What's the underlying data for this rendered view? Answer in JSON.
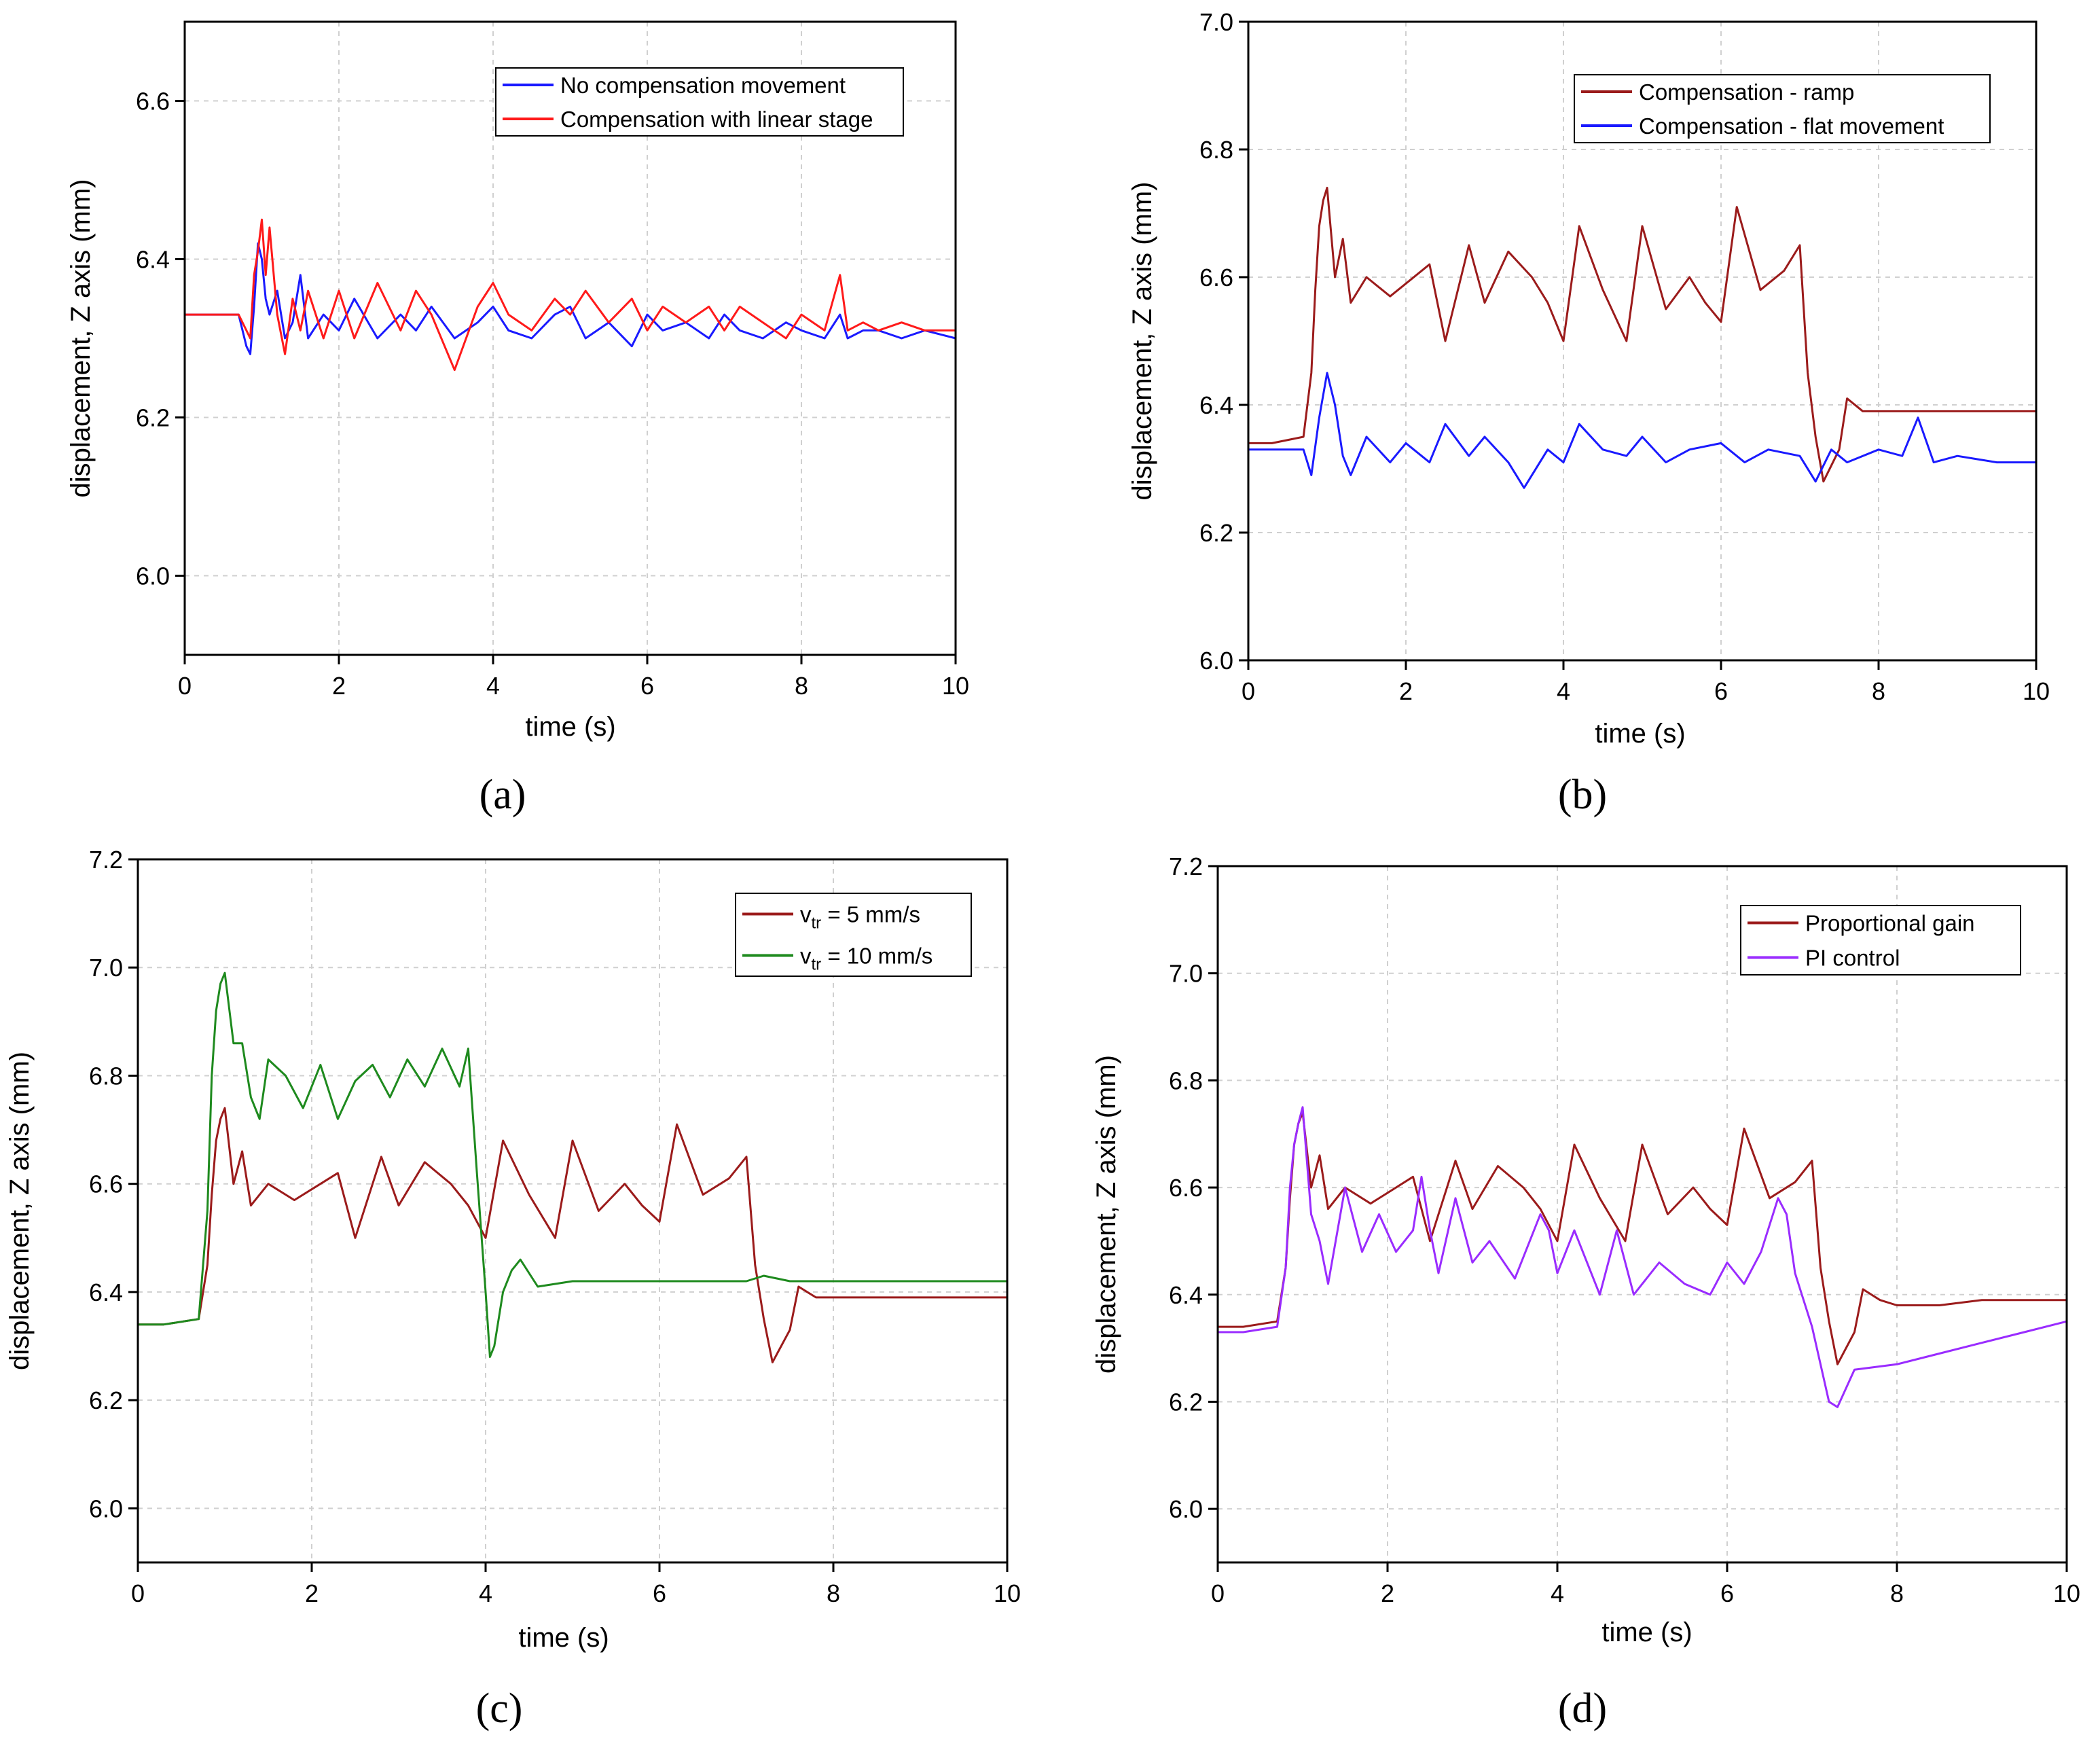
{
  "colors": {
    "blue": "#1a1aff",
    "red": "#ff1a1a",
    "darkred": "#9b1b1b",
    "green": "#1e8a1e",
    "purple": "#9a2cff"
  },
  "chart_data": [
    {
      "type": "line",
      "panel_label": "(a)",
      "xlabel": "time (s)",
      "ylabel": "displacement, Z axis (mm)",
      "xlim": [
        0,
        10
      ],
      "ylim": [
        5.9,
        6.7
      ],
      "xticks": [
        0,
        2,
        4,
        6,
        8,
        10
      ],
      "yticks": [
        6.0,
        6.2,
        6.4,
        6.6
      ],
      "xtick_labels": [
        "0",
        "2",
        "4",
        "6",
        "8",
        "10"
      ],
      "ytick_labels": [
        "6.0",
        "6.2",
        "6.4",
        "6.6"
      ],
      "grid": true,
      "legend_position": "top-right",
      "series": [
        {
          "name": "No compensation movement",
          "color_key": "blue",
          "x": [
            0,
            0.3,
            0.7,
            0.8,
            0.85,
            0.9,
            0.95,
            1.0,
            1.05,
            1.1,
            1.2,
            1.3,
            1.4,
            1.5,
            1.6,
            1.8,
            2.0,
            2.2,
            2.5,
            2.8,
            3.0,
            3.2,
            3.5,
            3.8,
            4.0,
            4.2,
            4.5,
            4.8,
            5.0,
            5.2,
            5.5,
            5.8,
            6.0,
            6.2,
            6.5,
            6.8,
            7.0,
            7.2,
            7.5,
            7.8,
            8.0,
            8.3,
            8.5,
            8.6,
            8.8,
            9.0,
            9.3,
            9.6,
            10.0
          ],
          "y": [
            6.33,
            6.33,
            6.33,
            6.29,
            6.28,
            6.34,
            6.42,
            6.4,
            6.35,
            6.33,
            6.36,
            6.3,
            6.32,
            6.38,
            6.3,
            6.33,
            6.31,
            6.35,
            6.3,
            6.33,
            6.31,
            6.34,
            6.3,
            6.32,
            6.34,
            6.31,
            6.3,
            6.33,
            6.34,
            6.3,
            6.32,
            6.29,
            6.33,
            6.31,
            6.32,
            6.3,
            6.33,
            6.31,
            6.3,
            6.32,
            6.31,
            6.3,
            6.33,
            6.3,
            6.31,
            6.31,
            6.3,
            6.31,
            6.3
          ]
        },
        {
          "name": "Compensation with linear stage",
          "color_key": "red",
          "x": [
            0,
            0.3,
            0.7,
            0.8,
            0.85,
            0.9,
            0.95,
            1.0,
            1.05,
            1.1,
            1.2,
            1.3,
            1.4,
            1.5,
            1.6,
            1.8,
            2.0,
            2.2,
            2.5,
            2.8,
            3.0,
            3.2,
            3.5,
            3.8,
            4.0,
            4.2,
            4.5,
            4.8,
            5.0,
            5.2,
            5.5,
            5.8,
            6.0,
            6.2,
            6.5,
            6.8,
            7.0,
            7.2,
            7.5,
            7.8,
            8.0,
            8.3,
            8.5,
            8.6,
            8.8,
            9.0,
            9.3,
            9.6,
            10.0
          ],
          "y": [
            6.33,
            6.33,
            6.33,
            6.31,
            6.3,
            6.38,
            6.41,
            6.45,
            6.38,
            6.44,
            6.33,
            6.28,
            6.35,
            6.31,
            6.36,
            6.3,
            6.36,
            6.3,
            6.37,
            6.31,
            6.36,
            6.33,
            6.26,
            6.34,
            6.37,
            6.33,
            6.31,
            6.35,
            6.33,
            6.36,
            6.32,
            6.35,
            6.31,
            6.34,
            6.32,
            6.34,
            6.31,
            6.34,
            6.32,
            6.3,
            6.33,
            6.31,
            6.38,
            6.31,
            6.32,
            6.31,
            6.32,
            6.31,
            6.31
          ]
        }
      ]
    },
    {
      "type": "line",
      "panel_label": "(b)",
      "xlabel": "time (s)",
      "ylabel": "displacement, Z axis (mm)",
      "xlim": [
        0,
        10
      ],
      "ylim": [
        6.0,
        7.0
      ],
      "xticks": [
        0,
        2,
        4,
        6,
        8,
        10
      ],
      "yticks": [
        6.0,
        6.2,
        6.4,
        6.6,
        6.8,
        7.0
      ],
      "xtick_labels": [
        "0",
        "2",
        "4",
        "6",
        "8",
        "10"
      ],
      "ytick_labels": [
        "6.0",
        "6.2",
        "6.4",
        "6.6",
        "6.8",
        "7.0"
      ],
      "grid": true,
      "legend_position": "top-right",
      "series": [
        {
          "name": "Compensation - ramp",
          "color_key": "darkred",
          "x": [
            0,
            0.3,
            0.7,
            0.8,
            0.85,
            0.9,
            0.95,
            1.0,
            1.1,
            1.2,
            1.3,
            1.5,
            1.8,
            2.0,
            2.3,
            2.5,
            2.8,
            3.0,
            3.3,
            3.6,
            3.8,
            4.0,
            4.2,
            4.5,
            4.8,
            5.0,
            5.3,
            5.6,
            5.8,
            6.0,
            6.2,
            6.5,
            6.8,
            7.0,
            7.1,
            7.2,
            7.3,
            7.5,
            7.6,
            7.8,
            8.0,
            8.5,
            9.0,
            9.5,
            10.0
          ],
          "y": [
            6.34,
            6.34,
            6.35,
            6.45,
            6.58,
            6.68,
            6.72,
            6.74,
            6.6,
            6.66,
            6.56,
            6.6,
            6.57,
            6.59,
            6.62,
            6.5,
            6.65,
            6.56,
            6.64,
            6.6,
            6.56,
            6.5,
            6.68,
            6.58,
            6.5,
            6.68,
            6.55,
            6.6,
            6.56,
            6.53,
            6.71,
            6.58,
            6.61,
            6.65,
            6.45,
            6.35,
            6.28,
            6.33,
            6.41,
            6.39,
            6.39,
            6.39,
            6.39,
            6.39,
            6.39
          ]
        },
        {
          "name": "Compensation - flat movement",
          "color_key": "blue",
          "x": [
            0,
            0.3,
            0.7,
            0.8,
            0.9,
            1.0,
            1.1,
            1.2,
            1.3,
            1.5,
            1.8,
            2.0,
            2.3,
            2.5,
            2.8,
            3.0,
            3.3,
            3.5,
            3.8,
            4.0,
            4.2,
            4.5,
            4.8,
            5.0,
            5.3,
            5.6,
            6.0,
            6.3,
            6.6,
            7.0,
            7.2,
            7.4,
            7.6,
            8.0,
            8.3,
            8.5,
            8.7,
            9.0,
            9.5,
            10.0
          ],
          "y": [
            6.33,
            6.33,
            6.33,
            6.29,
            6.38,
            6.45,
            6.4,
            6.32,
            6.29,
            6.35,
            6.31,
            6.34,
            6.31,
            6.37,
            6.32,
            6.35,
            6.31,
            6.27,
            6.33,
            6.31,
            6.37,
            6.33,
            6.32,
            6.35,
            6.31,
            6.33,
            6.34,
            6.31,
            6.33,
            6.32,
            6.28,
            6.33,
            6.31,
            6.33,
            6.32,
            6.38,
            6.31,
            6.32,
            6.31,
            6.31
          ]
        }
      ]
    },
    {
      "type": "line",
      "panel_label": "(c)",
      "xlabel": "time (s)",
      "ylabel": "displacement, Z axis (mm)",
      "xlim": [
        0,
        10
      ],
      "ylim": [
        5.9,
        7.2
      ],
      "xticks": [
        0,
        2,
        4,
        6,
        8,
        10
      ],
      "yticks": [
        6.0,
        6.2,
        6.4,
        6.6,
        6.8,
        7.0,
        7.2
      ],
      "xtick_labels": [
        "0",
        "2",
        "4",
        "6",
        "8",
        "10"
      ],
      "ytick_labels": [
        "6.0",
        "6.2",
        "6.4",
        "6.6",
        "6.8",
        "7.0",
        "7.2"
      ],
      "grid": true,
      "legend_position": "top-right",
      "legend_labels": [
        {
          "base": "v",
          "sub": "tr",
          "rest": " = 5 mm/s"
        },
        {
          "base": "v",
          "sub": "tr",
          "rest": " = 10 mm/s"
        }
      ],
      "series": [
        {
          "name": "v_tr = 5 mm/s",
          "color_key": "darkred",
          "x": [
            0,
            0.3,
            0.7,
            0.8,
            0.85,
            0.9,
            0.95,
            1.0,
            1.1,
            1.2,
            1.3,
            1.5,
            1.8,
            2.0,
            2.3,
            2.5,
            2.8,
            3.0,
            3.3,
            3.6,
            3.8,
            4.0,
            4.2,
            4.5,
            4.8,
            5.0,
            5.3,
            5.6,
            5.8,
            6.0,
            6.2,
            6.5,
            6.8,
            7.0,
            7.1,
            7.2,
            7.3,
            7.5,
            7.6,
            7.8,
            8.0,
            8.5,
            9.0,
            9.5,
            10.0
          ],
          "y": [
            6.34,
            6.34,
            6.35,
            6.45,
            6.58,
            6.68,
            6.72,
            6.74,
            6.6,
            6.66,
            6.56,
            6.6,
            6.57,
            6.59,
            6.62,
            6.5,
            6.65,
            6.56,
            6.64,
            6.6,
            6.56,
            6.5,
            6.68,
            6.58,
            6.5,
            6.68,
            6.55,
            6.6,
            6.56,
            6.53,
            6.71,
            6.58,
            6.61,
            6.65,
            6.45,
            6.35,
            6.27,
            6.33,
            6.41,
            6.39,
            6.39,
            6.39,
            6.39,
            6.39,
            6.39
          ]
        },
        {
          "name": "v_tr = 10 mm/s",
          "color_key": "green",
          "x": [
            0,
            0.3,
            0.7,
            0.8,
            0.85,
            0.9,
            0.95,
            1.0,
            1.1,
            1.2,
            1.3,
            1.4,
            1.5,
            1.7,
            1.9,
            2.1,
            2.3,
            2.5,
            2.7,
            2.9,
            3.1,
            3.3,
            3.5,
            3.7,
            3.8,
            3.9,
            4.0,
            4.05,
            4.1,
            4.2,
            4.3,
            4.4,
            4.6,
            5.0,
            5.5,
            6.0,
            6.5,
            7.0,
            7.2,
            7.5,
            8.0,
            8.5,
            9.0,
            9.5,
            10.0
          ],
          "y": [
            6.34,
            6.34,
            6.35,
            6.55,
            6.8,
            6.92,
            6.97,
            6.99,
            6.86,
            6.86,
            6.76,
            6.72,
            6.83,
            6.8,
            6.74,
            6.82,
            6.72,
            6.79,
            6.82,
            6.76,
            6.83,
            6.78,
            6.85,
            6.78,
            6.85,
            6.62,
            6.4,
            6.28,
            6.3,
            6.4,
            6.44,
            6.46,
            6.41,
            6.42,
            6.42,
            6.42,
            6.42,
            6.42,
            6.43,
            6.42,
            6.42,
            6.42,
            6.42,
            6.42,
            6.42
          ]
        }
      ]
    },
    {
      "type": "line",
      "panel_label": "(d)",
      "xlabel": "time (s)",
      "ylabel": "displacement, Z axis (mm)",
      "xlim": [
        0,
        10
      ],
      "ylim": [
        5.9,
        7.2
      ],
      "xticks": [
        0,
        2,
        4,
        6,
        8,
        10
      ],
      "yticks": [
        6.0,
        6.2,
        6.4,
        6.6,
        6.8,
        7.0,
        7.2
      ],
      "xtick_labels": [
        "0",
        "2",
        "4",
        "6",
        "8",
        "10"
      ],
      "ytick_labels": [
        "6.0",
        "6.2",
        "6.4",
        "6.6",
        "6.8",
        "7.0",
        "7.2"
      ],
      "grid": true,
      "legend_position": "top-right",
      "series": [
        {
          "name": "Proportional gain",
          "color_key": "darkred",
          "x": [
            0,
            0.3,
            0.7,
            0.8,
            0.85,
            0.9,
            0.95,
            1.0,
            1.1,
            1.2,
            1.3,
            1.5,
            1.8,
            2.0,
            2.3,
            2.5,
            2.8,
            3.0,
            3.3,
            3.6,
            3.8,
            4.0,
            4.2,
            4.5,
            4.8,
            5.0,
            5.3,
            5.6,
            5.8,
            6.0,
            6.2,
            6.5,
            6.8,
            7.0,
            7.1,
            7.2,
            7.3,
            7.5,
            7.6,
            7.8,
            8.0,
            8.5,
            9.0,
            9.5,
            10.0
          ],
          "y": [
            6.34,
            6.34,
            6.35,
            6.45,
            6.58,
            6.68,
            6.72,
            6.74,
            6.6,
            6.66,
            6.56,
            6.6,
            6.57,
            6.59,
            6.62,
            6.5,
            6.65,
            6.56,
            6.64,
            6.6,
            6.56,
            6.5,
            6.68,
            6.58,
            6.5,
            6.68,
            6.55,
            6.6,
            6.56,
            6.53,
            6.71,
            6.58,
            6.61,
            6.65,
            6.45,
            6.35,
            6.27,
            6.33,
            6.41,
            6.39,
            6.38,
            6.38,
            6.39,
            6.39,
            6.39
          ]
        },
        {
          "name": "PI control",
          "color_key": "purple",
          "x": [
            0,
            0.3,
            0.7,
            0.8,
            0.85,
            0.9,
            0.95,
            1.0,
            1.1,
            1.2,
            1.3,
            1.5,
            1.7,
            1.9,
            2.1,
            2.3,
            2.4,
            2.5,
            2.6,
            2.8,
            3.0,
            3.2,
            3.5,
            3.8,
            3.9,
            4.0,
            4.2,
            4.5,
            4.7,
            4.9,
            5.2,
            5.5,
            5.8,
            6.0,
            6.2,
            6.4,
            6.6,
            6.7,
            6.8,
            7.0,
            7.1,
            7.2,
            7.3,
            7.5,
            8.0,
            8.5,
            9.0,
            9.5,
            10.0
          ],
          "y": [
            6.33,
            6.33,
            6.34,
            6.45,
            6.6,
            6.68,
            6.72,
            6.75,
            6.55,
            6.5,
            6.42,
            6.6,
            6.48,
            6.55,
            6.48,
            6.52,
            6.62,
            6.52,
            6.44,
            6.58,
            6.46,
            6.5,
            6.43,
            6.55,
            6.52,
            6.44,
            6.52,
            6.4,
            6.52,
            6.4,
            6.46,
            6.42,
            6.4,
            6.46,
            6.42,
            6.48,
            6.58,
            6.55,
            6.44,
            6.34,
            6.27,
            6.2,
            6.19,
            6.26,
            6.27,
            6.29,
            6.31,
            6.33,
            6.35
          ]
        }
      ]
    }
  ]
}
